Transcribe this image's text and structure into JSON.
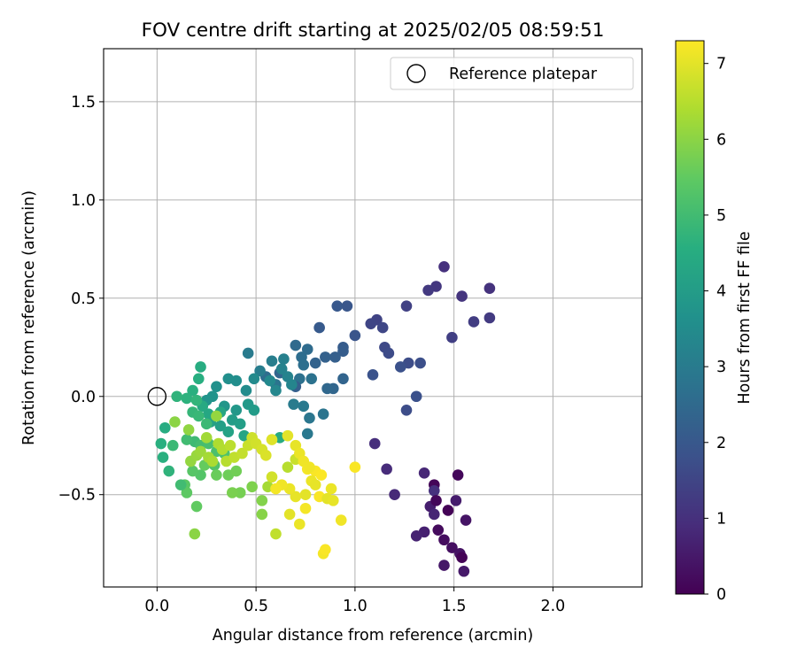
{
  "chart_data": {
    "type": "scatter",
    "title": "FOV centre drift starting at 2025/02/05 08:59:51",
    "xlabel": "Angular distance from reference (arcmin)",
    "ylabel": "Rotation from reference (arcmin)",
    "xlim": [
      -0.27,
      2.45
    ],
    "ylim": [
      -0.97,
      1.77
    ],
    "xticks": [
      0.0,
      0.5,
      1.0,
      1.5,
      2.0
    ],
    "xtick_labels": [
      "0.0",
      "0.5",
      "1.0",
      "1.5",
      "2.0"
    ],
    "yticks": [
      -0.5,
      0.0,
      0.5,
      1.0,
      1.5
    ],
    "ytick_labels": [
      "−0.5",
      "0.0",
      "0.5",
      "1.0",
      "1.5"
    ],
    "grid": true,
    "legend": {
      "position": "top-right",
      "label": "Reference platepar"
    },
    "reference_point": {
      "x": 0.0,
      "y": 0.0
    },
    "colorbar": {
      "label": "Hours from first FF file",
      "colormap": "viridis",
      "range": [
        0,
        7.3
      ],
      "ticks": [
        0,
        1,
        2,
        3,
        4,
        5,
        6,
        7
      ],
      "tick_labels": [
        "0",
        "1",
        "2",
        "3",
        "4",
        "5",
        "6",
        "7"
      ]
    },
    "points": [
      [
        1.47,
        -0.58,
        0.05
      ],
      [
        1.4,
        -0.45,
        0.1
      ],
      [
        1.52,
        -0.4,
        0.15
      ],
      [
        1.42,
        -0.68,
        0.2
      ],
      [
        1.45,
        -0.73,
        0.25
      ],
      [
        1.49,
        -0.77,
        0.3
      ],
      [
        1.53,
        -0.8,
        0.35
      ],
      [
        1.56,
        -0.63,
        0.4
      ],
      [
        1.45,
        -0.86,
        0.45
      ],
      [
        1.55,
        -0.89,
        0.5
      ],
      [
        1.51,
        -0.53,
        0.55
      ],
      [
        1.38,
        -0.56,
        0.6
      ],
      [
        1.35,
        -0.69,
        0.65
      ],
      [
        1.31,
        -0.71,
        0.7
      ],
      [
        1.4,
        -0.6,
        0.75
      ],
      [
        1.35,
        -0.39,
        0.8
      ],
      [
        1.2,
        -0.5,
        0.85
      ],
      [
        1.16,
        -0.37,
        0.9
      ],
      [
        1.1,
        -0.24,
        0.95
      ],
      [
        1.4,
        -0.48,
        1.0
      ],
      [
        1.54,
        -0.82,
        0.05
      ],
      [
        1.41,
        -0.53,
        0.12
      ],
      [
        1.45,
        0.66,
        1.0
      ],
      [
        1.68,
        0.55,
        1.05
      ],
      [
        1.54,
        0.51,
        1.1
      ],
      [
        1.41,
        0.56,
        1.15
      ],
      [
        1.37,
        0.54,
        1.2
      ],
      [
        1.68,
        0.4,
        1.25
      ],
      [
        1.6,
        0.38,
        1.3
      ],
      [
        1.49,
        0.3,
        1.35
      ],
      [
        1.26,
        0.46,
        1.4
      ],
      [
        1.11,
        0.39,
        1.45
      ],
      [
        1.08,
        0.37,
        1.5
      ],
      [
        1.14,
        0.35,
        1.55
      ],
      [
        1.15,
        0.25,
        1.6
      ],
      [
        1.17,
        0.22,
        1.65
      ],
      [
        1.27,
        0.17,
        1.7
      ],
      [
        1.33,
        0.17,
        1.75
      ],
      [
        1.23,
        0.15,
        1.8
      ],
      [
        1.09,
        0.11,
        1.85
      ],
      [
        1.0,
        0.31,
        1.9
      ],
      [
        0.96,
        0.46,
        1.95
      ],
      [
        0.91,
        0.46,
        2.0
      ],
      [
        1.26,
        -0.07,
        1.7
      ],
      [
        1.31,
        0.0,
        1.8
      ],
      [
        0.82,
        0.35,
        2.05
      ],
      [
        0.94,
        0.25,
        2.1
      ],
      [
        0.94,
        0.23,
        2.15
      ],
      [
        0.9,
        0.2,
        2.2
      ],
      [
        0.85,
        0.2,
        2.25
      ],
      [
        0.8,
        0.17,
        2.3
      ],
      [
        0.94,
        0.09,
        2.35
      ],
      [
        0.89,
        0.04,
        2.4
      ],
      [
        0.86,
        0.04,
        2.45
      ],
      [
        0.7,
        0.26,
        2.5
      ],
      [
        0.76,
        0.24,
        2.55
      ],
      [
        0.73,
        0.2,
        2.6
      ],
      [
        0.74,
        0.16,
        2.65
      ],
      [
        0.72,
        0.09,
        2.7
      ],
      [
        0.78,
        0.09,
        2.75
      ],
      [
        0.84,
        -0.09,
        2.8
      ],
      [
        0.77,
        -0.11,
        2.85
      ],
      [
        0.76,
        -0.19,
        2.9
      ],
      [
        0.74,
        -0.05,
        2.95
      ],
      [
        0.69,
        -0.04,
        3.0
      ],
      [
        0.7,
        0.05,
        2.2
      ],
      [
        0.62,
        0.12,
        2.4
      ],
      [
        0.55,
        0.1,
        2.6
      ],
      [
        0.6,
        0.06,
        2.8
      ],
      [
        0.46,
        0.22,
        3.0
      ],
      [
        0.52,
        0.13,
        3.05
      ],
      [
        0.58,
        0.18,
        3.1
      ],
      [
        0.64,
        0.19,
        3.15
      ],
      [
        0.63,
        0.14,
        3.2
      ],
      [
        0.66,
        0.1,
        3.25
      ],
      [
        0.68,
        0.06,
        3.3
      ],
      [
        0.6,
        0.03,
        3.35
      ],
      [
        0.57,
        0.08,
        3.4
      ],
      [
        0.49,
        0.09,
        3.45
      ],
      [
        0.45,
        0.03,
        3.5
      ],
      [
        0.4,
        0.08,
        3.55
      ],
      [
        0.36,
        0.09,
        3.6
      ],
      [
        0.3,
        0.05,
        3.65
      ],
      [
        0.28,
        0.0,
        3.7
      ],
      [
        0.25,
        -0.02,
        3.75
      ],
      [
        0.34,
        -0.05,
        3.8
      ],
      [
        0.4,
        -0.07,
        3.85
      ],
      [
        0.46,
        -0.04,
        3.9
      ],
      [
        0.49,
        -0.07,
        3.95
      ],
      [
        0.38,
        -0.12,
        4.0
      ],
      [
        0.42,
        -0.14,
        4.05
      ],
      [
        0.32,
        -0.15,
        4.1
      ],
      [
        0.27,
        -0.13,
        4.15
      ],
      [
        0.36,
        -0.18,
        4.2
      ],
      [
        0.44,
        -0.2,
        4.25
      ],
      [
        0.32,
        -0.08,
        4.3
      ],
      [
        0.26,
        -0.09,
        4.35
      ],
      [
        0.23,
        -0.05,
        4.4
      ],
      [
        0.62,
        -0.21,
        4.45
      ],
      [
        0.22,
        0.15,
        4.5
      ],
      [
        0.21,
        0.09,
        4.55
      ],
      [
        0.18,
        0.03,
        4.6
      ],
      [
        0.15,
        -0.01,
        4.65
      ],
      [
        0.1,
        0.0,
        4.7
      ],
      [
        0.2,
        -0.02,
        4.75
      ],
      [
        0.18,
        -0.08,
        4.8
      ],
      [
        0.21,
        -0.1,
        4.85
      ],
      [
        0.25,
        -0.14,
        4.9
      ],
      [
        0.19,
        -0.23,
        4.95
      ],
      [
        0.15,
        -0.22,
        5.0
      ],
      [
        0.22,
        -0.25,
        5.05
      ],
      [
        0.26,
        -0.24,
        5.1
      ],
      [
        0.3,
        -0.28,
        5.15
      ],
      [
        0.34,
        -0.29,
        5.2
      ],
      [
        0.29,
        -0.35,
        5.25
      ],
      [
        0.22,
        -0.4,
        5.3
      ],
      [
        0.18,
        -0.38,
        5.35
      ],
      [
        0.14,
        -0.45,
        5.4
      ],
      [
        0.15,
        -0.49,
        5.45
      ],
      [
        0.2,
        -0.56,
        5.5
      ],
      [
        0.24,
        -0.35,
        5.55
      ],
      [
        0.3,
        -0.4,
        5.6
      ],
      [
        0.36,
        -0.4,
        5.65
      ],
      [
        0.4,
        -0.38,
        5.7
      ],
      [
        0.42,
        -0.49,
        5.75
      ],
      [
        0.38,
        -0.49,
        5.8
      ],
      [
        0.48,
        -0.46,
        5.85
      ],
      [
        0.53,
        -0.53,
        5.9
      ],
      [
        0.53,
        -0.6,
        5.95
      ],
      [
        0.02,
        -0.24,
        4.6
      ],
      [
        0.03,
        -0.31,
        4.6
      ],
      [
        0.04,
        -0.16,
        4.5
      ],
      [
        0.06,
        -0.38,
        4.7
      ],
      [
        0.08,
        -0.25,
        4.9
      ],
      [
        0.12,
        -0.45,
        5.0
      ],
      [
        0.09,
        -0.13,
        6.0
      ],
      [
        0.16,
        -0.17,
        6.05
      ],
      [
        0.17,
        -0.33,
        6.1
      ],
      [
        0.2,
        -0.3,
        6.15
      ],
      [
        0.22,
        -0.28,
        6.2
      ],
      [
        0.25,
        -0.21,
        6.25
      ],
      [
        0.26,
        -0.31,
        6.3
      ],
      [
        0.28,
        -0.33,
        6.35
      ],
      [
        0.31,
        -0.24,
        6.4
      ],
      [
        0.33,
        -0.27,
        6.45
      ],
      [
        0.35,
        -0.33,
        6.5
      ],
      [
        0.37,
        -0.25,
        6.55
      ],
      [
        0.39,
        -0.31,
        6.6
      ],
      [
        0.43,
        -0.29,
        6.65
      ],
      [
        0.46,
        -0.25,
        6.7
      ],
      [
        0.48,
        -0.21,
        6.75
      ],
      [
        0.5,
        -0.24,
        6.8
      ],
      [
        0.53,
        -0.27,
        6.85
      ],
      [
        0.55,
        -0.3,
        6.9
      ],
      [
        0.58,
        -0.22,
        6.95
      ],
      [
        0.19,
        -0.7,
        6.0
      ],
      [
        0.3,
        -0.1,
        6.1
      ],
      [
        0.56,
        -0.46,
        6.3
      ],
      [
        0.6,
        -0.7,
        6.6
      ],
      [
        0.66,
        -0.36,
        6.5
      ],
      [
        0.7,
        -0.32,
        6.7
      ],
      [
        0.58,
        -0.41,
        6.8
      ],
      [
        0.66,
        -0.2,
        7.0
      ],
      [
        0.7,
        -0.25,
        7.05
      ],
      [
        0.72,
        -0.29,
        7.1
      ],
      [
        0.74,
        -0.33,
        7.15
      ],
      [
        0.76,
        -0.37,
        7.2
      ],
      [
        0.8,
        -0.38,
        7.25
      ],
      [
        0.83,
        -0.4,
        7.28
      ],
      [
        0.78,
        -0.43,
        7.1
      ],
      [
        0.75,
        -0.5,
        7.0
      ],
      [
        0.7,
        -0.51,
        7.05
      ],
      [
        0.67,
        -0.47,
        7.1
      ],
      [
        0.63,
        -0.45,
        7.15
      ],
      [
        0.6,
        -0.47,
        7.2
      ],
      [
        0.82,
        -0.51,
        7.25
      ],
      [
        0.86,
        -0.52,
        7.0
      ],
      [
        0.89,
        -0.53,
        7.05
      ],
      [
        0.88,
        -0.47,
        7.1
      ],
      [
        0.93,
        -0.63,
        7.15
      ],
      [
        0.84,
        -0.8,
        7.2
      ],
      [
        0.85,
        -0.78,
        7.25
      ],
      [
        0.67,
        -0.6,
        7.0
      ],
      [
        0.72,
        -0.65,
        7.1
      ],
      [
        0.75,
        -0.57,
        7.2
      ],
      [
        1.0,
        -0.36,
        7.25
      ],
      [
        0.77,
        -0.36,
        7.15
      ],
      [
        0.8,
        -0.45,
        7.05
      ]
    ]
  }
}
